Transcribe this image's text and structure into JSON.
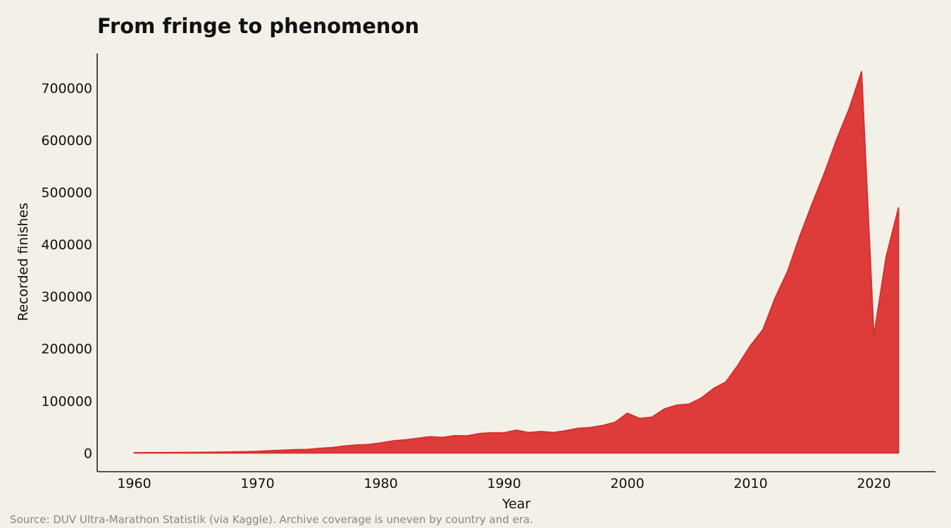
{
  "chart_data": {
    "type": "area",
    "title": "From fringe to phenomenon",
    "xlabel": "Year",
    "ylabel": "Recorded finishes",
    "source": "Source: DUV Ultra-Marathon Statistik (via Kaggle). Archive coverage is uneven by country and era.",
    "xlim": [
      1957,
      2025
    ],
    "ylim": [
      -36000,
      766000
    ],
    "xticks": [
      1960,
      1970,
      1980,
      1990,
      2000,
      2010,
      2020
    ],
    "yticks": [
      0,
      100000,
      200000,
      300000,
      400000,
      500000,
      600000,
      700000
    ],
    "grid": false,
    "legend": "none",
    "colors": {
      "fill": "#de3b3b",
      "stroke": "#d62f2f",
      "background": "#f3f0e8",
      "axis": "#222222"
    },
    "series": [
      {
        "x": [
          1960,
          1961,
          1962,
          1963,
          1964,
          1965,
          1966,
          1967,
          1968,
          1969,
          1970,
          1971,
          1972,
          1973,
          1974,
          1975,
          1976,
          1977,
          1978,
          1979,
          1980,
          1981,
          1982,
          1983,
          1984,
          1985,
          1986,
          1987,
          1988,
          1989,
          1990,
          1991,
          1992,
          1993,
          1994,
          1995,
          1996,
          1997,
          1998,
          1999,
          2000,
          2001,
          2002,
          2003,
          2004,
          2005,
          2006,
          2007,
          2008,
          2009,
          2010,
          2011,
          2012,
          2013,
          2014,
          2015,
          2016,
          2017,
          2018,
          2019,
          2020,
          2021,
          2022
        ],
        "values": [
          300,
          400,
          500,
          600,
          800,
          1000,
          1200,
          1500,
          1800,
          2200,
          2800,
          4000,
          5000,
          6000,
          6500,
          8500,
          10000,
          13000,
          15000,
          16000,
          19000,
          23000,
          25000,
          28000,
          31000,
          29500,
          33000,
          32500,
          37000,
          38500,
          38500,
          43500,
          39000,
          41000,
          39000,
          42500,
          47000,
          48500,
          52500,
          58500,
          76000,
          66000,
          68500,
          84000,
          91500,
          93500,
          105000,
          123500,
          136000,
          169000,
          206000,
          236000,
          297500,
          348000,
          416000,
          478000,
          537000,
          602000,
          660000,
          731000,
          224000,
          376000,
          470000
        ]
      }
    ]
  }
}
